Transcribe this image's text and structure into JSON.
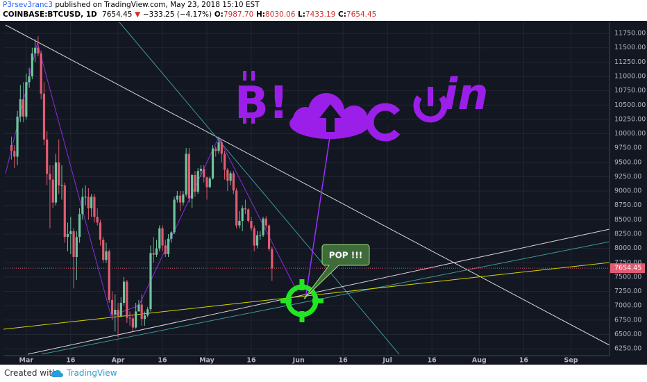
{
  "header": {
    "author": "P3rsev3ranc3",
    "published": "published on TradingView.com, May 23, 2018 15:10 EST",
    "symbol": "COINBASE:BTCUSD, 1D",
    "last": "7654.45",
    "arrow": "▼",
    "change": "−333.25 (−4.17%)",
    "quote": [
      {
        "label": "O:",
        "value": "7987.70"
      },
      {
        "label": "H:",
        "value": "8030.06"
      },
      {
        "label": "L:",
        "value": "7433.19"
      },
      {
        "label": "C:",
        "value": "7654.45"
      }
    ]
  },
  "chart_data": {
    "type": "candlestick",
    "up_color": "#6ec49c",
    "down_color": "#e25b72",
    "grid": true,
    "candles": [
      [
        9800,
        9950,
        9550,
        9700
      ],
      [
        9700,
        9800,
        9400,
        9600
      ],
      [
        9600,
        10400,
        9450,
        10300
      ],
      [
        10300,
        10850,
        10200,
        10600
      ],
      [
        10600,
        10900,
        10200,
        10300
      ],
      [
        10300,
        11050,
        10250,
        10900
      ],
      [
        10900,
        11150,
        10800,
        11000
      ],
      [
        11000,
        11500,
        10950,
        11400
      ],
      [
        11400,
        11650,
        11250,
        11500
      ],
      [
        11500,
        11700,
        11350,
        11400
      ],
      [
        11400,
        11450,
        10600,
        10700
      ],
      [
        10700,
        10900,
        9800,
        9900
      ],
      [
        9900,
        10050,
        9100,
        9300
      ],
      [
        9300,
        9450,
        8350,
        9200
      ],
      [
        9200,
        9450,
        8700,
        8800
      ],
      [
        8800,
        9650,
        8750,
        9500
      ],
      [
        9500,
        9900,
        8950,
        9100
      ],
      [
        9100,
        9450,
        8850,
        9100
      ],
      [
        9100,
        9150,
        8100,
        8200
      ],
      [
        8200,
        8450,
        7950,
        8250
      ],
      [
        8250,
        8550,
        7900,
        8300
      ],
      [
        8300,
        8350,
        7300,
        7850
      ],
      [
        7850,
        8300,
        7450,
        8200
      ],
      [
        8200,
        8700,
        8100,
        8600
      ],
      [
        8600,
        9050,
        8500,
        8900
      ],
      [
        8900,
        9100,
        8750,
        8900
      ],
      [
        8900,
        9050,
        8500,
        8700
      ],
      [
        8700,
        8950,
        8550,
        8900
      ],
      [
        8900,
        8950,
        8450,
        8550
      ],
      [
        8550,
        8700,
        8400,
        8450
      ],
      [
        8450,
        8500,
        8050,
        8150
      ],
      [
        8150,
        8200,
        7750,
        7800
      ],
      [
        7800,
        8100,
        7750,
        7950
      ],
      [
        7950,
        7980,
        7050,
        7100
      ],
      [
        7100,
        7250,
        6750,
        6850
      ],
      [
        6850,
        7200,
        6550,
        6930
      ],
      [
        6930,
        7050,
        6450,
        6820
      ],
      [
        6820,
        7150,
        6800,
        7050
      ],
      [
        7050,
        7500,
        7000,
        7420
      ],
      [
        7420,
        7450,
        6700,
        6790
      ],
      [
        6790,
        6900,
        6650,
        6780
      ],
      [
        6780,
        6850,
        6550,
        6620
      ],
      [
        6620,
        7050,
        6600,
        6900
      ],
      [
        6900,
        7100,
        6900,
        7020
      ],
      [
        7020,
        7200,
        6650,
        6770
      ],
      [
        6770,
        6900,
        6650,
        6830
      ],
      [
        6830,
        6980,
        6800,
        6940
      ],
      [
        6940,
        8050,
        6900,
        7920
      ],
      [
        7920,
        8200,
        7750,
        7890
      ],
      [
        7890,
        8150,
        7850,
        8000
      ],
      [
        8000,
        8400,
        7950,
        8350
      ],
      [
        8350,
        8400,
        7950,
        8050
      ],
      [
        8050,
        8150,
        7850,
        7900
      ],
      [
        7900,
        8250,
        7850,
        8170
      ],
      [
        8170,
        8300,
        8100,
        8280
      ],
      [
        8280,
        8900,
        8250,
        8850
      ],
      [
        8850,
        9000,
        8800,
        8920
      ],
      [
        8920,
        9000,
        8650,
        8800
      ],
      [
        8800,
        9000,
        8750,
        8940
      ],
      [
        8940,
        9750,
        8900,
        9650
      ],
      [
        9650,
        9750,
        8800,
        8870
      ],
      [
        8870,
        9300,
        8700,
        9280
      ],
      [
        9280,
        9350,
        8900,
        8990
      ],
      [
        8990,
        9400,
        8950,
        9350
      ],
      [
        9350,
        9450,
        9250,
        9390
      ],
      [
        9390,
        9450,
        9150,
        9240
      ],
      [
        9240,
        9250,
        8850,
        9070
      ],
      [
        9070,
        9250,
        9050,
        9220
      ],
      [
        9220,
        9800,
        9200,
        9740
      ],
      [
        9740,
        9780,
        9600,
        9700
      ],
      [
        9700,
        9950,
        9650,
        9850
      ],
      [
        9850,
        9900,
        9500,
        9650
      ],
      [
        9650,
        9700,
        9200,
        9370
      ],
      [
        9370,
        9400,
        9000,
        9180
      ],
      [
        9180,
        9350,
        9100,
        9310
      ],
      [
        9310,
        9350,
        8950,
        9010
      ],
      [
        9010,
        9050,
        8350,
        8400
      ],
      [
        8400,
        8650,
        8350,
        8480
      ],
      [
        8480,
        8750,
        8300,
        8700
      ],
      [
        8700,
        8850,
        8600,
        8680
      ],
      [
        8680,
        8700,
        8450,
        8480
      ],
      [
        8480,
        8550,
        8300,
        8350
      ],
      [
        8350,
        8400,
        7950,
        8050
      ],
      [
        8050,
        8300,
        8000,
        8230
      ],
      [
        8230,
        8300,
        8150,
        8230
      ],
      [
        8230,
        8550,
        8200,
        8520
      ],
      [
        8520,
        8560,
        8350,
        8400
      ],
      [
        8400,
        8420,
        7950,
        7990
      ],
      [
        7987.7,
        8030.06,
        7433.19,
        7654.45
      ]
    ],
    "xlim": [
      -2.7,
      202
    ],
    "xticks": [
      {
        "value": 5,
        "label": "Mar"
      },
      {
        "value": 20,
        "label": "16"
      },
      {
        "value": 36,
        "label": "Apr"
      },
      {
        "value": 51,
        "label": "16"
      },
      {
        "value": 66,
        "label": "May"
      },
      {
        "value": 81,
        "label": "16"
      },
      {
        "value": 97,
        "label": "Jun"
      },
      {
        "value": 112,
        "label": "16"
      },
      {
        "value": 127,
        "label": "Jul"
      },
      {
        "value": 142,
        "label": "16"
      },
      {
        "value": 158,
        "label": "Aug"
      },
      {
        "value": 173,
        "label": "16"
      },
      {
        "value": 189,
        "label": "Sep"
      }
    ],
    "ylim": [
      6130,
      11945
    ],
    "yticks": [
      {
        "value": 6250,
        "label": "6250.00"
      },
      {
        "value": 6500,
        "label": "6500.00"
      },
      {
        "value": 6750,
        "label": "6750.00"
      },
      {
        "value": 7000,
        "label": "7000.00"
      },
      {
        "value": 7250,
        "label": "7250.00"
      },
      {
        "value": 7500,
        "label": "7500.00"
      },
      {
        "value": 7750,
        "label": "7750.00"
      },
      {
        "value": 8000,
        "label": "8000.00"
      },
      {
        "value": 8250,
        "label": "8250.00"
      },
      {
        "value": 8500,
        "label": "8500.00"
      },
      {
        "value": 8750,
        "label": "8750.00"
      },
      {
        "value": 9000,
        "label": "9000.00"
      },
      {
        "value": 9250,
        "label": "9250.00"
      },
      {
        "value": 9500,
        "label": "9500.00"
      },
      {
        "value": 9750,
        "label": "9750.00"
      },
      {
        "value": 10000,
        "label": "10000.00"
      },
      {
        "value": 10250,
        "label": "10250.00"
      },
      {
        "value": 10500,
        "label": "10500.00"
      },
      {
        "value": 10750,
        "label": "10750.00"
      },
      {
        "value": 11000,
        "label": "11000.00"
      },
      {
        "value": 11250,
        "label": "11250.00"
      },
      {
        "value": 11500,
        "label": "11500.00"
      },
      {
        "value": 11750,
        "label": "11750.00"
      }
    ],
    "annotation": "POP !!!",
    "logo_left": "B!",
    "logo_right": "in"
  },
  "footer": {
    "created": "Created with",
    "brand": "TradingView"
  }
}
